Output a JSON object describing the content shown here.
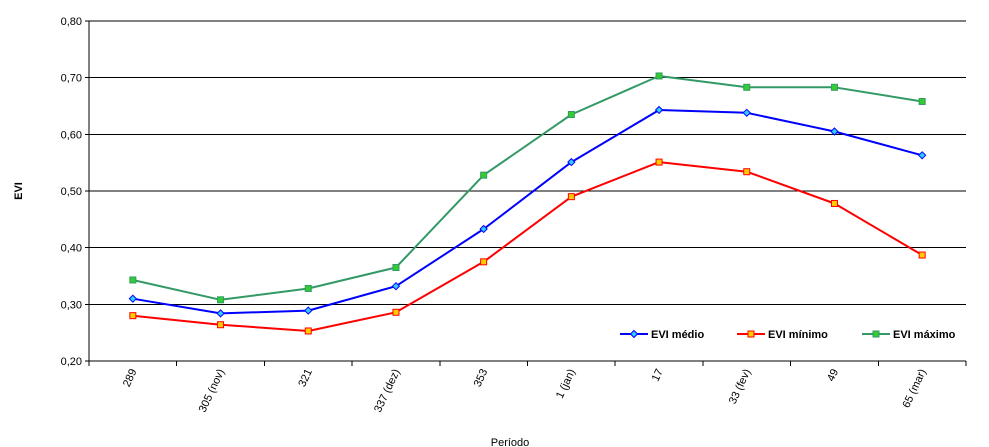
{
  "chart_data": {
    "type": "line",
    "title": "",
    "xlabel": "Período",
    "ylabel": "EVI",
    "categories": [
      "289",
      "305 (nov)",
      "321",
      "337 (dez)",
      "353",
      "1 (jan)",
      "17",
      "33 (fev)",
      "49",
      "65 (mar)"
    ],
    "y_tick_labels": [
      "0,20",
      "0,30",
      "0,40",
      "0,50",
      "0,60",
      "0,70",
      "0,80"
    ],
    "y_ticks": [
      0.2,
      0.3,
      0.4,
      0.5,
      0.6,
      0.7,
      0.8
    ],
    "ylim": [
      0.2,
      0.8
    ],
    "grid": true,
    "legend_position": "bottom-right",
    "series": [
      {
        "name": "EVI médio",
        "color": "#0000ff",
        "marker": "diamond",
        "marker_color": "#33ccff",
        "values": [
          0.31,
          0.284,
          0.289,
          0.332,
          0.433,
          0.551,
          0.643,
          0.638,
          0.605,
          0.563
        ]
      },
      {
        "name": "EVI mínimo",
        "color": "#ff0000",
        "marker": "square",
        "marker_color": "#ffcc00",
        "values": [
          0.28,
          0.264,
          0.253,
          0.286,
          0.375,
          0.49,
          0.551,
          0.534,
          0.478,
          0.387
        ]
      },
      {
        "name": "EVI máximo",
        "color": "#339966",
        "marker": "square",
        "marker_color": "#33cc33",
        "values": [
          0.343,
          0.308,
          0.328,
          0.365,
          0.528,
          0.635,
          0.703,
          0.683,
          0.683,
          0.658
        ]
      }
    ]
  }
}
